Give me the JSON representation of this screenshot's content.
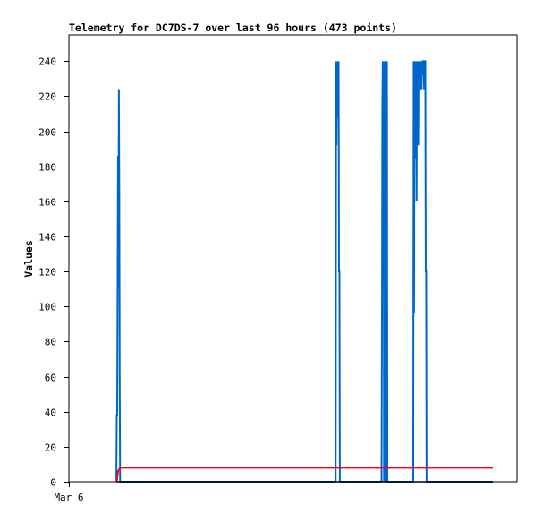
{
  "chart_data": {
    "type": "line",
    "title": "Telemetry for DC7DS-7 over last 96 hours (473 points)",
    "xlabel": "",
    "ylabel": "Values",
    "x_tick_labels": [
      "Mar 6"
    ],
    "ylim": [
      0,
      255
    ],
    "y_ticks": [
      0,
      20,
      40,
      60,
      80,
      100,
      120,
      140,
      160,
      180,
      200,
      220,
      240
    ],
    "xlim_hours": [
      0,
      96
    ],
    "grid": false,
    "legend": "none",
    "series": [
      {
        "color": "#0066cc",
        "points": [
          [
            5.7,
            0
          ],
          [
            5.8,
            38
          ],
          [
            5.9,
            38
          ],
          [
            6.0,
            112
          ],
          [
            6.1,
            186
          ],
          [
            6.2,
            112
          ],
          [
            6.3,
            224
          ],
          [
            6.4,
            168
          ],
          [
            6.5,
            56
          ],
          [
            6.6,
            0
          ],
          [
            6.7,
            0
          ],
          [
            58.3,
            0
          ],
          [
            58.4,
            240
          ],
          [
            58.5,
            192
          ],
          [
            58.6,
            224
          ],
          [
            58.7,
            208
          ],
          [
            58.8,
            240
          ],
          [
            58.9,
            224
          ],
          [
            59.0,
            240
          ],
          [
            59.1,
            120
          ],
          [
            59.2,
            120
          ],
          [
            59.3,
            0
          ],
          [
            59.4,
            0
          ],
          [
            69.3,
            0
          ],
          [
            69.4,
            96
          ],
          [
            69.5,
            216
          ],
          [
            69.6,
            240
          ],
          [
            69.7,
            120
          ],
          [
            69.8,
            240
          ],
          [
            69.9,
            0
          ],
          [
            70.0,
            240
          ],
          [
            70.1,
            0
          ],
          [
            70.2,
            240
          ],
          [
            70.3,
            120
          ],
          [
            70.4,
            240
          ],
          [
            70.5,
            0
          ],
          [
            70.6,
            240
          ],
          [
            70.7,
            0
          ],
          [
            70.8,
            0
          ],
          [
            76.9,
            0
          ],
          [
            77.0,
            240
          ],
          [
            77.1,
            96
          ],
          [
            77.2,
            232
          ],
          [
            77.3,
            200
          ],
          [
            77.4,
            240
          ],
          [
            77.5,
            184
          ],
          [
            77.6,
            232
          ],
          [
            77.7,
            160
          ],
          [
            77.8,
            240
          ],
          [
            77.9,
            208
          ],
          [
            78.0,
            232
          ],
          [
            78.1,
            192
          ],
          [
            78.2,
            240
          ],
          [
            78.3,
            224
          ],
          [
            78.4,
            232
          ],
          [
            78.5,
            240
          ],
          [
            78.6,
            224
          ],
          [
            78.7,
            232
          ],
          [
            78.8,
            240
          ],
          [
            78.9,
            224
          ],
          [
            79.0,
            240
          ],
          [
            79.1,
            232
          ],
          [
            79.2,
            240
          ],
          [
            79.4,
            240
          ],
          [
            79.5,
            224
          ],
          [
            79.6,
            240
          ],
          [
            79.7,
            240
          ],
          [
            79.8,
            240
          ],
          [
            79.9,
            120
          ],
          [
            80.0,
            120
          ],
          [
            80.1,
            0
          ],
          [
            80.2,
            0
          ],
          [
            96.0,
            0
          ]
        ]
      },
      {
        "color": "#ff0000",
        "points": [
          [
            5.8,
            0
          ],
          [
            6.1,
            6
          ],
          [
            6.6,
            8
          ],
          [
            96.0,
            8
          ]
        ]
      },
      {
        "color": "#000000",
        "points": [
          [
            5.7,
            0
          ],
          [
            96.0,
            0
          ]
        ]
      }
    ]
  }
}
